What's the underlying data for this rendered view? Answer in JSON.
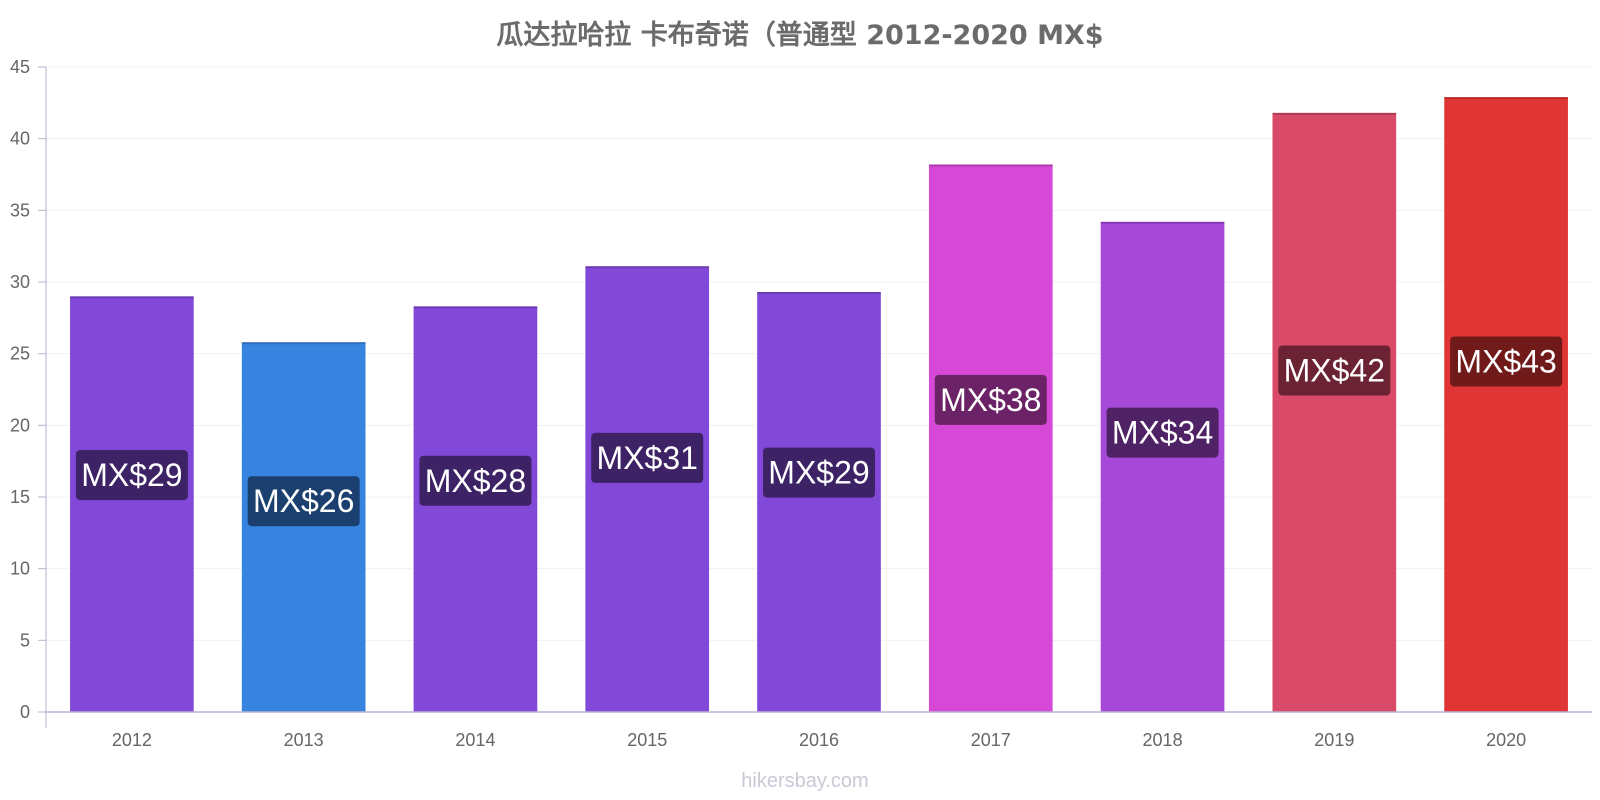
{
  "chart_data": {
    "type": "bar",
    "title": "瓜达拉哈拉 卡布奇诺（普通型 2012-2020 MX$",
    "categories": [
      "2012",
      "2013",
      "2014",
      "2015",
      "2016",
      "2017",
      "2018",
      "2019",
      "2020"
    ],
    "values": [
      29.0,
      25.8,
      28.3,
      31.1,
      29.3,
      38.2,
      34.2,
      41.8,
      42.9
    ],
    "value_labels": [
      "MX$29",
      "MX$26",
      "MX$28",
      "MX$31",
      "MX$29",
      "MX$38",
      "MX$34",
      "MX$42",
      "MX$43"
    ],
    "bar_colors": [
      "#8249d9",
      "#3784e0",
      "#8249d9",
      "#8249d9",
      "#8249d9",
      "#d649d6",
      "#a649d9",
      "#d94968",
      "#e03535"
    ],
    "label_colors": [
      "#3d2266",
      "#1b4070",
      "#3d2266",
      "#3d2266",
      "#3d2266",
      "#6b2266",
      "#4f2266",
      "#6b2233",
      "#701a1a"
    ],
    "ylim": [
      0,
      45
    ],
    "yticks": [
      0,
      5,
      10,
      15,
      20,
      25,
      30,
      35,
      40,
      45
    ],
    "xlabel": "",
    "ylabel": "",
    "grid": true
  },
  "watermark": "hikersbay.com"
}
